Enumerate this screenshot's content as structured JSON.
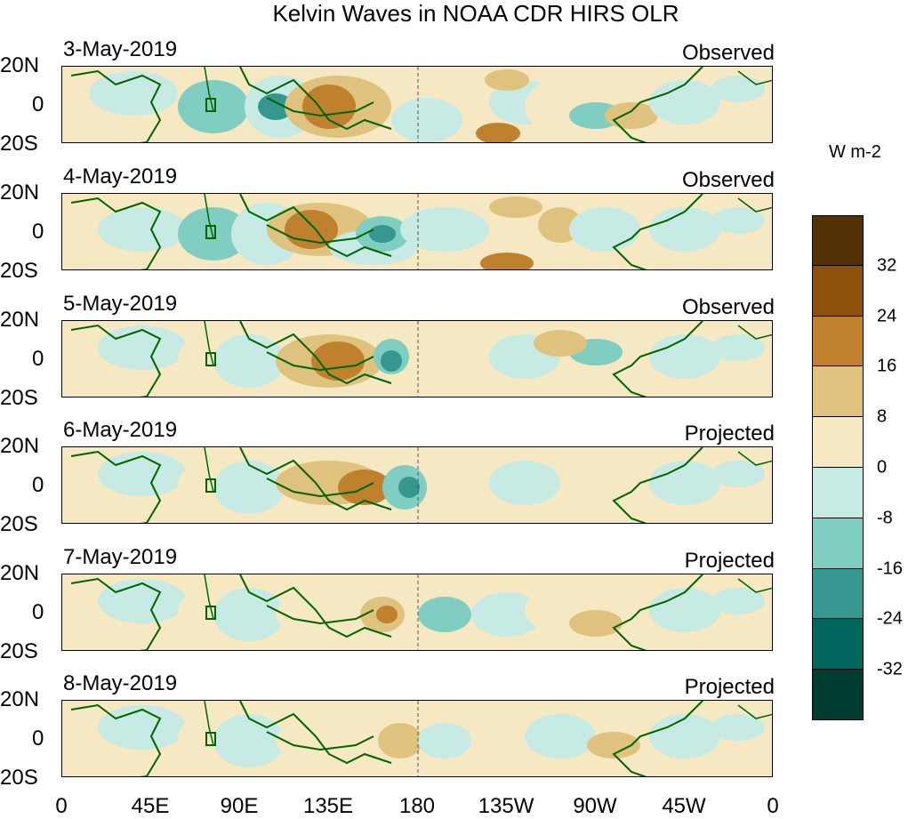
{
  "title": "Kelvin Waves in NOAA CDR HIRS OLR",
  "panels": [
    {
      "date": "3-May-2019",
      "status": "Observed"
    },
    {
      "date": "4-May-2019",
      "status": "Observed"
    },
    {
      "date": "5-May-2019",
      "status": "Observed"
    },
    {
      "date": "6-May-2019",
      "status": "Projected"
    },
    {
      "date": "7-May-2019",
      "status": "Projected"
    },
    {
      "date": "8-May-2019",
      "status": "Projected"
    }
  ],
  "lat_labels": [
    "20N",
    "0",
    "20S"
  ],
  "lon_labels": [
    "0",
    "45E",
    "90E",
    "135E",
    "180",
    "135W",
    "90W",
    "45W",
    "0"
  ],
  "colorbar": {
    "units": "W m-2",
    "ticks": [
      "32",
      "24",
      "16",
      "8",
      "0",
      "-8",
      "-16",
      "-24",
      "-32"
    ],
    "colors": [
      "#543005",
      "#8c510a",
      "#bf812d",
      "#dfc27d",
      "#f6e8c3",
      "#c7eae5",
      "#80cdc1",
      "#35978f",
      "#01665e",
      "#003c30"
    ]
  },
  "map_colors": {
    "coast": "#006400",
    "dateline": "#555555"
  }
}
